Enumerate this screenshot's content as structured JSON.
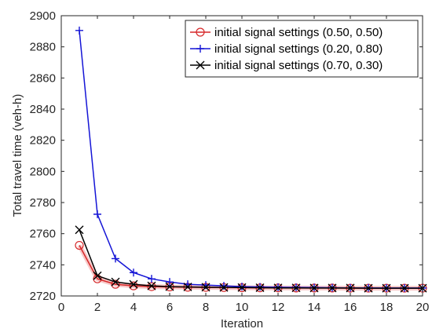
{
  "chart_data": {
    "type": "line",
    "xlabel": "Iteration",
    "ylabel": "Total travel time (veh-h)",
    "xlim": [
      0,
      20
    ],
    "ylim": [
      2720,
      2900
    ],
    "xticks": [
      "0",
      "2",
      "4",
      "6",
      "8",
      "10",
      "12",
      "14",
      "16",
      "18",
      "20"
    ],
    "yticks": [
      "2720",
      "2740",
      "2760",
      "2780",
      "2800",
      "2820",
      "2840",
      "2860",
      "2880",
      "2900"
    ],
    "grid": false,
    "legend_position": "top-right",
    "x": [
      1,
      2,
      3,
      4,
      5,
      6,
      7,
      8,
      9,
      10,
      11,
      12,
      13,
      14,
      15,
      16,
      17,
      18,
      19,
      20
    ],
    "series": [
      {
        "name": "initial signal settings (0.50, 0.50)",
        "color": "#d62728",
        "marker": "circle",
        "values": [
          2752.5,
          2731,
          2727.5,
          2726.5,
          2726,
          2725.8,
          2725.6,
          2725.5,
          2725.4,
          2725.3,
          2725.2,
          2725.2,
          2725.1,
          2725.1,
          2725.1,
          2725,
          2725,
          2725,
          2725,
          2725
        ]
      },
      {
        "name": "initial signal settings (0.20, 0.80)",
        "color": "#1515d6",
        "marker": "plus",
        "values": [
          2890.5,
          2772.5,
          2744,
          2735,
          2731,
          2729,
          2727.5,
          2727,
          2726.5,
          2726,
          2725.8,
          2725.6,
          2725.5,
          2725.4,
          2725.3,
          2725.2,
          2725.2,
          2725.1,
          2725.1,
          2725.1
        ]
      },
      {
        "name": "initial signal settings (0.70, 0.30)",
        "color": "#000000",
        "marker": "x",
        "values": [
          2762.5,
          2733,
          2729,
          2727.5,
          2726.5,
          2726,
          2725.8,
          2725.6,
          2725.5,
          2725.4,
          2725.3,
          2725.2,
          2725.2,
          2725.1,
          2725.1,
          2725.1,
          2725,
          2725,
          2725,
          2725
        ]
      }
    ]
  }
}
